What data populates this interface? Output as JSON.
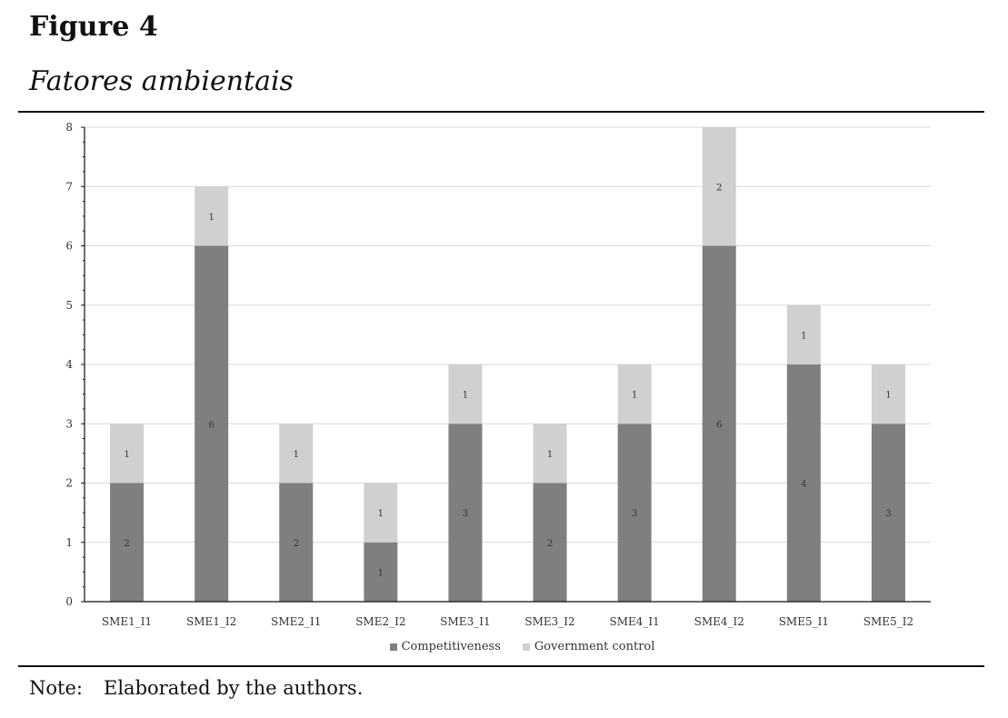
{
  "figure": {
    "number": "Figure 4",
    "title": "Fatores ambientais"
  },
  "note": {
    "label": "Note:",
    "text": "Elaborated by the authors."
  },
  "chart_data": {
    "type": "bar",
    "stacked": true,
    "title": "",
    "xlabel": "",
    "ylabel": "",
    "categories": [
      "SME1_I1",
      "SME1_I2",
      "SME2_I1",
      "SME2_I2",
      "SME3_I1",
      "SME3_I2",
      "SME4_I1",
      "SME4_I2",
      "SME5_I1",
      "SME5_I2"
    ],
    "series": [
      {
        "name": "Competitiveness",
        "values": [
          2,
          6,
          2,
          1,
          3,
          2,
          3,
          6,
          4,
          3
        ],
        "color": "#7f7f7f"
      },
      {
        "name": "Government control",
        "values": [
          1,
          1,
          1,
          1,
          1,
          1,
          1,
          2,
          1,
          1
        ],
        "color": "#d0d0d0"
      }
    ],
    "ylim": [
      0,
      8
    ],
    "yticks": [
      0,
      1,
      2,
      3,
      4,
      5,
      6,
      7,
      8
    ],
    "data_labels": true,
    "grid": true,
    "legend_position": "bottom"
  }
}
